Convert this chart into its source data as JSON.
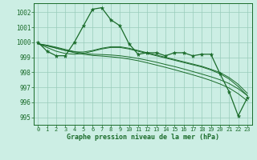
{
  "main_data": [
    1000.0,
    999.4,
    999.1,
    999.1,
    1000.0,
    1001.1,
    1002.2,
    1002.3,
    1001.5,
    1001.1,
    999.9,
    999.2,
    999.3,
    999.3,
    999.1,
    999.3,
    999.3,
    999.1,
    999.2,
    999.2,
    997.9,
    996.7,
    995.1,
    996.3
  ],
  "smooth1": [
    999.9,
    999.65,
    999.4,
    999.25,
    999.2,
    999.25,
    999.4,
    999.55,
    999.65,
    999.65,
    999.55,
    999.4,
    999.25,
    999.1,
    998.95,
    998.8,
    998.65,
    998.5,
    998.35,
    998.15,
    997.9,
    997.55,
    997.05,
    996.45
  ],
  "smooth2": [
    999.9,
    999.75,
    999.6,
    999.45,
    999.35,
    999.35,
    999.45,
    999.6,
    999.7,
    999.7,
    999.6,
    999.45,
    999.3,
    999.15,
    999.0,
    998.85,
    998.7,
    998.55,
    998.4,
    998.2,
    997.98,
    997.65,
    997.2,
    996.6
  ],
  "trend1": [
    999.9,
    999.8,
    999.67,
    999.52,
    999.38,
    999.27,
    999.2,
    999.18,
    999.15,
    999.1,
    999.02,
    998.92,
    998.8,
    998.67,
    998.52,
    998.38,
    998.22,
    998.05,
    997.88,
    997.7,
    997.5,
    997.25,
    996.9,
    996.45
  ],
  "trend2": [
    999.9,
    999.78,
    999.62,
    999.45,
    999.3,
    999.2,
    999.12,
    999.08,
    999.03,
    998.97,
    998.88,
    998.77,
    998.63,
    998.48,
    998.33,
    998.17,
    998.0,
    997.83,
    997.65,
    997.45,
    997.22,
    996.95,
    996.57,
    996.1
  ],
  "x": [
    0,
    1,
    2,
    3,
    4,
    5,
    6,
    7,
    8,
    9,
    10,
    11,
    12,
    13,
    14,
    15,
    16,
    17,
    18,
    19,
    20,
    21,
    22,
    23
  ],
  "ylim": [
    994.5,
    1002.6
  ],
  "yticks": [
    995,
    996,
    997,
    998,
    999,
    1000,
    1001,
    1002
  ],
  "bg_color": "#cceee4",
  "grid_color": "#99ccbb",
  "line_color": "#1a6b2a",
  "xlabel": "Graphe pression niveau de la mer (hPa)"
}
